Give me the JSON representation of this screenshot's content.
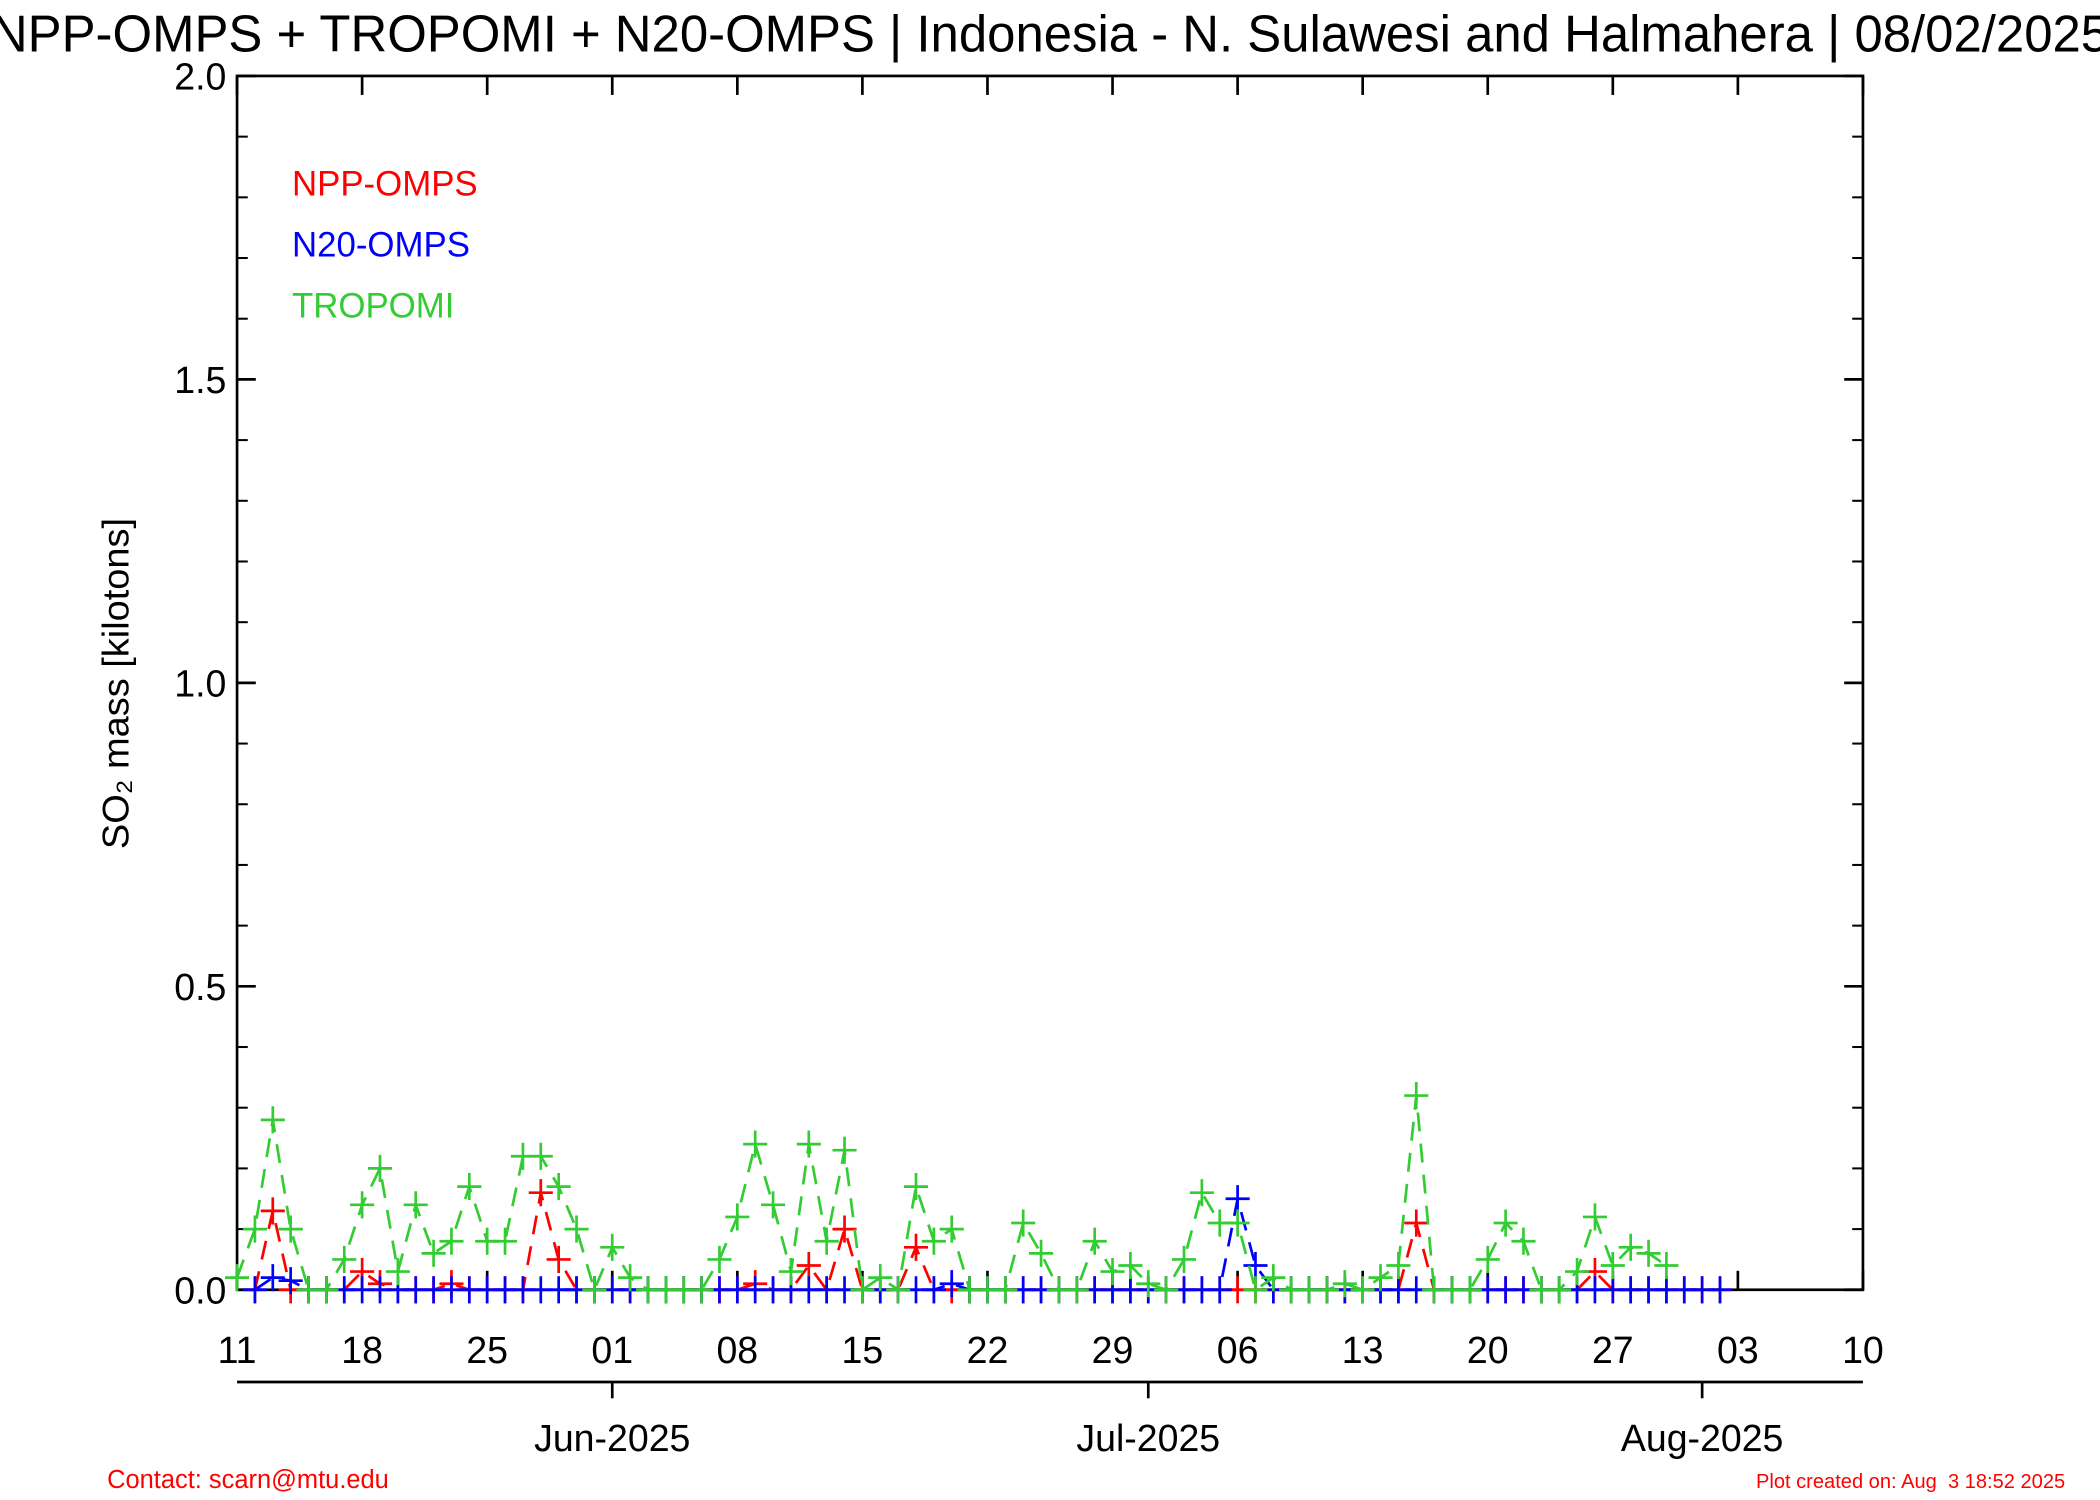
{
  "chart_data": {
    "type": "line",
    "title": "NPP-OMPS + TROPOMI + N20-OMPS | Indonesia - N. Sulawesi and Halmahera | 08/02/2025",
    "ylabel": "SO₂ mass [kilotons]",
    "x": [
      "2025-05-11",
      "2025-05-12",
      "2025-05-13",
      "2025-05-14",
      "2025-05-15",
      "2025-05-16",
      "2025-05-17",
      "2025-05-18",
      "2025-05-19",
      "2025-05-20",
      "2025-05-21",
      "2025-05-22",
      "2025-05-23",
      "2025-05-24",
      "2025-05-25",
      "2025-05-26",
      "2025-05-27",
      "2025-05-28",
      "2025-05-29",
      "2025-05-30",
      "2025-05-31",
      "2025-06-01",
      "2025-06-02",
      "2025-06-03",
      "2025-06-04",
      "2025-06-05",
      "2025-06-06",
      "2025-06-07",
      "2025-06-08",
      "2025-06-09",
      "2025-06-10",
      "2025-06-11",
      "2025-06-12",
      "2025-06-13",
      "2025-06-14",
      "2025-06-15",
      "2025-06-16",
      "2025-06-17",
      "2025-06-18",
      "2025-06-19",
      "2025-06-20",
      "2025-06-21",
      "2025-06-22",
      "2025-06-23",
      "2025-06-24",
      "2025-06-25",
      "2025-06-26",
      "2025-06-27",
      "2025-06-28",
      "2025-06-29",
      "2025-06-30",
      "2025-07-01",
      "2025-07-02",
      "2025-07-03",
      "2025-07-04",
      "2025-07-05",
      "2025-07-06",
      "2025-07-07",
      "2025-07-08",
      "2025-07-09",
      "2025-07-10",
      "2025-07-11",
      "2025-07-12",
      "2025-07-13",
      "2025-07-14",
      "2025-07-15",
      "2025-07-16",
      "2025-07-17",
      "2025-07-18",
      "2025-07-19",
      "2025-07-20",
      "2025-07-21",
      "2025-07-22",
      "2025-07-23",
      "2025-07-24",
      "2025-07-25",
      "2025-07-26",
      "2025-07-27",
      "2025-07-28",
      "2025-07-29",
      "2025-07-30",
      "2025-07-31",
      "2025-08-01",
      "2025-08-02"
    ],
    "series": [
      {
        "name": "NPP-OMPS",
        "color": "#ff0000",
        "values": [
          null,
          0,
          0.13,
          0,
          0,
          0,
          0,
          0.03,
          0.01,
          0,
          0,
          0,
          0.01,
          0,
          0,
          0,
          0,
          0.16,
          0.05,
          0,
          0,
          0,
          0,
          0,
          0,
          0,
          0,
          0,
          0,
          0.01,
          0,
          0,
          0.04,
          0,
          0.1,
          0,
          0,
          0,
          0.07,
          0,
          0,
          0,
          0,
          0,
          0,
          0,
          0,
          0,
          0,
          0,
          0,
          0,
          0,
          0,
          0,
          0,
          0,
          0,
          0,
          0,
          0,
          0,
          0,
          0,
          0,
          0,
          0.11,
          0,
          0,
          0,
          0,
          0,
          0,
          0,
          0,
          0,
          0.03,
          0,
          0,
          0,
          0,
          0,
          0,
          0
        ]
      },
      {
        "name": "N20-OMPS",
        "color": "#0000ff",
        "values": [
          null,
          0,
          0.02,
          0.015,
          0,
          0,
          0,
          0,
          0,
          0,
          0,
          0,
          0,
          0,
          0,
          0,
          0,
          0,
          0,
          0,
          0,
          0,
          0,
          0,
          0,
          0,
          0,
          0,
          0,
          0,
          0,
          0,
          0,
          0,
          0,
          0,
          0,
          0,
          0,
          0,
          0.01,
          0,
          0,
          0,
          0,
          0,
          0,
          0,
          0,
          0,
          0,
          0,
          0,
          0,
          0,
          0,
          0.15,
          0.04,
          0,
          0,
          0,
          0,
          0,
          0,
          0,
          0,
          0,
          0,
          0,
          0,
          0,
          0,
          0,
          0,
          0,
          0,
          0,
          0,
          0,
          0,
          0,
          0,
          0,
          0
        ]
      },
      {
        "name": "TROPOMI",
        "color": "#33cc33",
        "values": [
          0.02,
          0.1,
          0.28,
          0.1,
          0,
          0,
          0.05,
          0.14,
          0.2,
          0.03,
          0.14,
          0.06,
          0.08,
          0.17,
          0.08,
          0.08,
          0.22,
          0.22,
          0.17,
          0.1,
          0,
          0.07,
          0.02,
          0,
          0,
          0,
          0,
          0.05,
          0.12,
          0.24,
          0.14,
          0.03,
          0.24,
          0.08,
          0.23,
          0,
          0.02,
          0,
          0.17,
          0.08,
          0.1,
          0,
          0,
          0,
          0.11,
          0.06,
          0,
          0,
          0.08,
          0.03,
          0.04,
          0.01,
          0,
          0.05,
          0.16,
          0.11,
          0.11,
          0,
          0.02,
          0,
          0,
          0,
          0.01,
          0,
          0.02,
          0.04,
          0.32,
          0,
          0,
          0,
          0.05,
          0.11,
          0.08,
          0,
          0,
          0.03,
          0.12,
          0.04,
          0.07,
          0.06,
          0.04,
          null,
          null,
          null
        ]
      }
    ],
    "xlim": [
      "2025-05-11",
      "2025-08-10"
    ],
    "xticks": [
      {
        "value": "2025-05-11",
        "label": "11"
      },
      {
        "value": "2025-05-18",
        "label": "18"
      },
      {
        "value": "2025-05-25",
        "label": "25"
      },
      {
        "value": "2025-06-01",
        "label": "01"
      },
      {
        "value": "2025-06-08",
        "label": "08"
      },
      {
        "value": "2025-06-15",
        "label": "15"
      },
      {
        "value": "2025-06-22",
        "label": "22"
      },
      {
        "value": "2025-06-29",
        "label": "29"
      },
      {
        "value": "2025-07-06",
        "label": "06"
      },
      {
        "value": "2025-07-13",
        "label": "13"
      },
      {
        "value": "2025-07-20",
        "label": "20"
      },
      {
        "value": "2025-07-27",
        "label": "27"
      },
      {
        "value": "2025-08-03",
        "label": "03"
      },
      {
        "value": "2025-08-10",
        "label": "10"
      }
    ],
    "month_ticks": [
      {
        "value": "2025-06-01",
        "label": "Jun-2025"
      },
      {
        "value": "2025-07-01",
        "label": "Jul-2025"
      },
      {
        "value": "2025-08-01",
        "label": "Aug-2025"
      }
    ],
    "ylim": [
      0,
      2
    ],
    "yticks": [
      {
        "value": 0,
        "label": "0.0"
      },
      0.5,
      {
        "value": 1,
        "label": "1.0"
      },
      1.5,
      {
        "value": 2,
        "label": "2.0"
      }
    ],
    "legend": "upper left",
    "contact": "Contact: scarn@mtu.edu",
    "created": "Plot created on: Aug  3 18:52 2025"
  }
}
